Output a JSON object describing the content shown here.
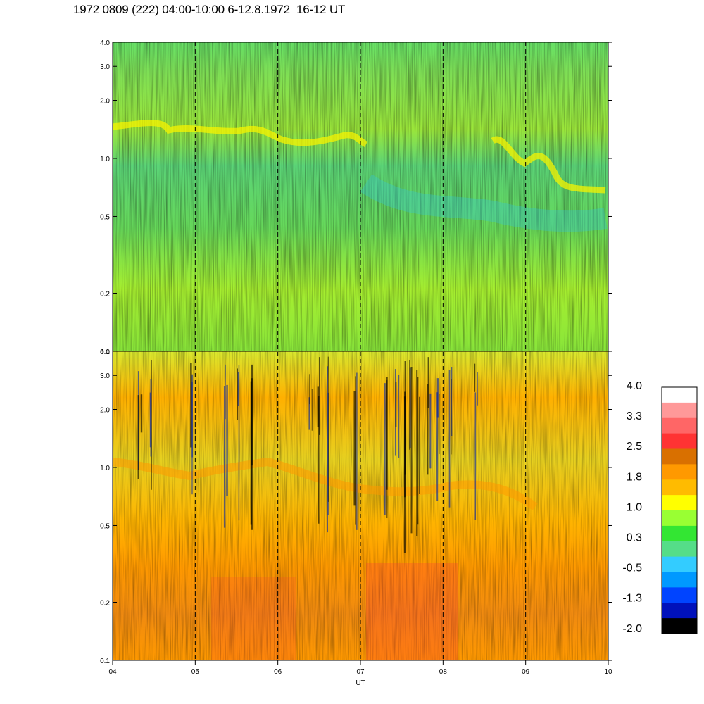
{
  "title": "1972 0809 (222) 04:00-10:00 6-12.8.1972  16-12 UT",
  "chart_data": {
    "type": "heatmap",
    "title": "1972 0809 (222) 04:00-10:00 6-12.8.1972  16-12 UT",
    "xlabel": "UT",
    "x_ticks": [
      "04",
      "05",
      "06",
      "07",
      "08",
      "09",
      "10"
    ],
    "x_range": [
      4,
      10
    ],
    "panels": [
      {
        "name": "upper",
        "y_ticks": [
          "4.0",
          "3.0",
          "2.0",
          "1.0",
          "0.5",
          "0.2",
          "0.1"
        ],
        "y_range": [
          0.1,
          4.0
        ],
        "y_scale": "log",
        "dominant_levels": [
          0.3,
          1.0
        ]
      },
      {
        "name": "lower",
        "y_ticks": [
          "4.0",
          "3.0",
          "2.0",
          "1.0",
          "0.5",
          "0.2",
          "0.1"
        ],
        "y_range": [
          0.1,
          4.0
        ],
        "y_scale": "log",
        "dominant_levels": [
          1.8,
          2.5
        ]
      }
    ],
    "colorbar": {
      "labels": [
        "4.0",
        "3.3",
        "2.5",
        "1.8",
        "1.0",
        "0.3",
        "-0.5",
        "-1.3",
        "-2.0"
      ],
      "colors": [
        "#ffffff",
        "#ff9999",
        "#ff6666",
        "#ff3333",
        "#d97000",
        "#ff9900",
        "#ffbb00",
        "#ffff00",
        "#99ff33",
        "#33e633",
        "#55dd88",
        "#33ccff",
        "#0099ff",
        "#0044ff",
        "#0011bb",
        "#000000"
      ]
    },
    "vertical_dashed_lines_at": [
      "05",
      "06",
      "07",
      "08",
      "09"
    ]
  }
}
